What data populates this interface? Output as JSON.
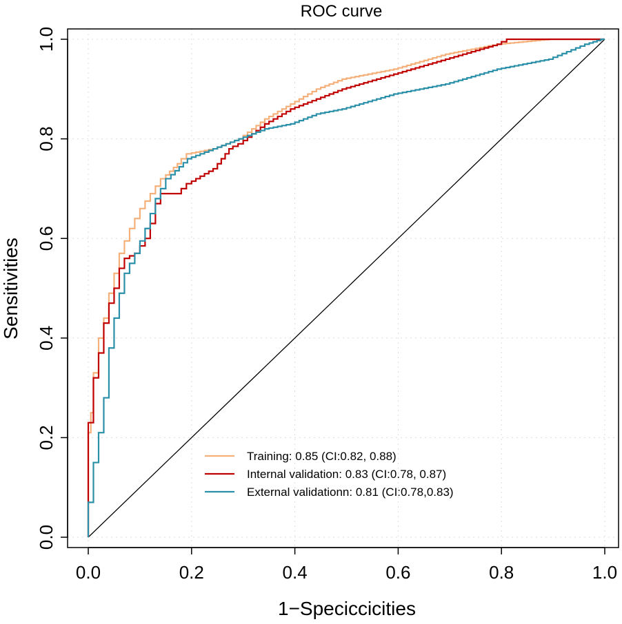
{
  "chart_data": {
    "type": "line",
    "title": "ROC curve",
    "xlabel": "1−Speciccicities",
    "ylabel": "Sensitivities",
    "xlim": [
      0,
      1
    ],
    "ylim": [
      0,
      1
    ],
    "xticks": [
      "0.0",
      "0.2",
      "0.4",
      "0.6",
      "0.8",
      "1.0"
    ],
    "yticks": [
      "0.0",
      "0.2",
      "0.4",
      "0.6",
      "0.8",
      "1.0"
    ],
    "grid": true,
    "legend_position": "bottom-right",
    "reference_line": [
      [
        0,
        0
      ],
      [
        1,
        1
      ]
    ],
    "series": [
      {
        "name": "Training: 0.85 (CI:0.82, 0.88)",
        "color": "#F5B07A",
        "x": [
          0,
          0,
          0.005,
          0.01,
          0.02,
          0.03,
          0.04,
          0.05,
          0.06,
          0.07,
          0.09,
          0.11,
          0.13,
          0.15,
          0.18,
          0.2,
          0.25,
          0.3,
          0.35,
          0.4,
          0.45,
          0.5,
          0.6,
          0.7,
          0.8,
          0.9,
          1
        ],
        "y": [
          0,
          0.16,
          0.21,
          0.25,
          0.33,
          0.4,
          0.44,
          0.49,
          0.53,
          0.57,
          0.62,
          0.66,
          0.69,
          0.72,
          0.75,
          0.77,
          0.78,
          0.8,
          0.84,
          0.87,
          0.9,
          0.92,
          0.94,
          0.97,
          0.99,
          1.0,
          1.0
        ]
      },
      {
        "name": "Internal validation: 0.83 (CI:0.78, 0.87)",
        "color": "#C00000",
        "x": [
          0,
          0,
          0.01,
          0.02,
          0.03,
          0.04,
          0.05,
          0.06,
          0.07,
          0.08,
          0.1,
          0.12,
          0.13,
          0.14,
          0.15,
          0.18,
          0.2,
          0.25,
          0.28,
          0.3,
          0.35,
          0.4,
          0.45,
          0.5,
          0.6,
          0.7,
          0.8,
          0.82,
          1
        ],
        "y": [
          0,
          0.06,
          0.23,
          0.32,
          0.37,
          0.43,
          0.47,
          0.5,
          0.54,
          0.56,
          0.57,
          0.6,
          0.63,
          0.67,
          0.69,
          0.69,
          0.71,
          0.74,
          0.78,
          0.79,
          0.83,
          0.86,
          0.88,
          0.9,
          0.93,
          0.96,
          0.99,
          1.0,
          1.0
        ]
      },
      {
        "name": "External validationn: 0.81 (CI:0.78,0.83)",
        "color": "#2A8FA8",
        "x": [
          0,
          0.01,
          0.02,
          0.03,
          0.04,
          0.05,
          0.06,
          0.07,
          0.08,
          0.1,
          0.12,
          0.14,
          0.16,
          0.2,
          0.25,
          0.3,
          0.35,
          0.4,
          0.45,
          0.5,
          0.6,
          0.7,
          0.8,
          0.9,
          0.97,
          1
        ],
        "y": [
          0,
          0.07,
          0.15,
          0.21,
          0.28,
          0.38,
          0.44,
          0.49,
          0.53,
          0.57,
          0.62,
          0.68,
          0.72,
          0.76,
          0.78,
          0.8,
          0.82,
          0.83,
          0.85,
          0.86,
          0.89,
          0.91,
          0.94,
          0.96,
          0.99,
          1.0
        ]
      }
    ]
  }
}
